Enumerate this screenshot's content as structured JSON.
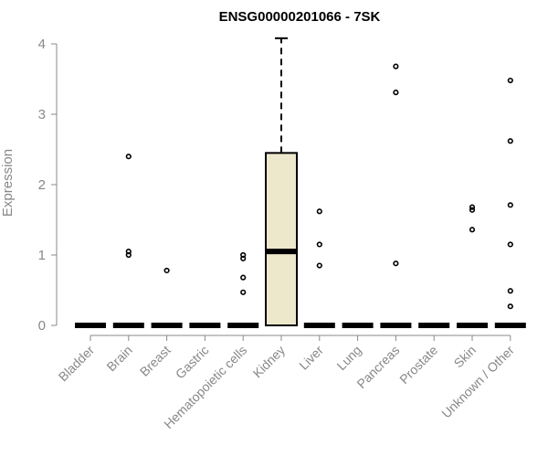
{
  "chart_data": {
    "type": "boxplot",
    "title": "ENSG00000201066 - 7SK",
    "xlabel": "",
    "ylabel": "Expression",
    "ylim": [
      0,
      4
    ],
    "yticks": [
      "0",
      "1",
      "2",
      "3",
      "4"
    ],
    "box_fill": "#ede7cc",
    "categories": [
      "Bladder",
      "Brain",
      "Breast",
      "Gastric",
      "Hematopoietic cells",
      "Kidney",
      "Liver",
      "Lung",
      "Pancreas",
      "Prostate",
      "Skin",
      "Unknown / Other"
    ],
    "boxes": [
      {
        "q1": 0,
        "median": 0,
        "q3": 0,
        "whisker_low": 0,
        "whisker_high": 0,
        "outliers": []
      },
      {
        "q1": 0,
        "median": 0,
        "q3": 0,
        "whisker_low": 0,
        "whisker_high": 0,
        "outliers": [
          2.4,
          1.05,
          1.0
        ]
      },
      {
        "q1": 0,
        "median": 0,
        "q3": 0,
        "whisker_low": 0,
        "whisker_high": 0,
        "outliers": [
          0.78
        ]
      },
      {
        "q1": 0,
        "median": 0,
        "q3": 0,
        "whisker_low": 0,
        "whisker_high": 0,
        "outliers": []
      },
      {
        "q1": 0,
        "median": 0,
        "q3": 0,
        "whisker_low": 0,
        "whisker_high": 0,
        "outliers": [
          1.0,
          0.95,
          0.68,
          0.47
        ]
      },
      {
        "q1": 0,
        "median": 1.05,
        "q3": 2.45,
        "whisker_low": 0,
        "whisker_high": 4.08,
        "outliers": []
      },
      {
        "q1": 0,
        "median": 0,
        "q3": 0,
        "whisker_low": 0,
        "whisker_high": 0,
        "outliers": [
          1.62,
          1.15,
          0.85
        ]
      },
      {
        "q1": 0,
        "median": 0,
        "q3": 0,
        "whisker_low": 0,
        "whisker_high": 0,
        "outliers": []
      },
      {
        "q1": 0,
        "median": 0,
        "q3": 0,
        "whisker_low": 0,
        "whisker_high": 0,
        "outliers": [
          3.68,
          3.31,
          0.88
        ]
      },
      {
        "q1": 0,
        "median": 0,
        "q3": 0,
        "whisker_low": 0,
        "whisker_high": 0,
        "outliers": []
      },
      {
        "q1": 0,
        "median": 0,
        "q3": 0,
        "whisker_low": 0,
        "whisker_high": 0,
        "outliers": [
          1.68,
          1.64,
          1.36
        ]
      },
      {
        "q1": 0,
        "median": 0,
        "q3": 0,
        "whisker_low": 0,
        "whisker_high": 0,
        "outliers": [
          3.48,
          2.62,
          1.71,
          1.15,
          0.49,
          0.27
        ]
      }
    ]
  }
}
